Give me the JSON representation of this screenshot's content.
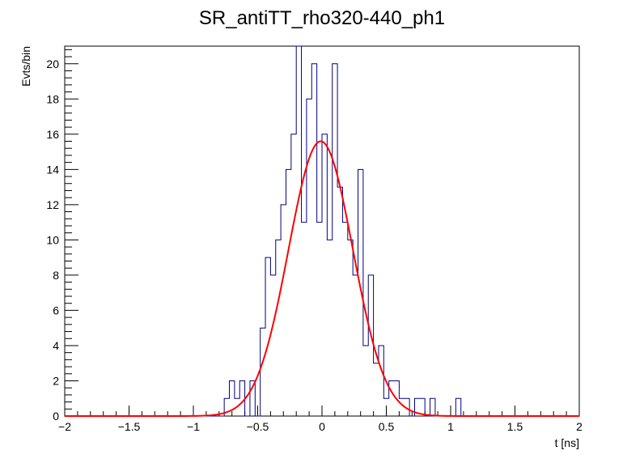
{
  "chart_data": {
    "type": "histogram",
    "title": "SR_antiTT_rho320-440_ph1",
    "xlabel": "t [ns]",
    "ylabel": "Evts/bin",
    "xlim": [
      -2,
      2
    ],
    "ylim": [
      0,
      21
    ],
    "x_ticks": [
      {
        "value": -2,
        "label": "−2"
      },
      {
        "value": -1.5,
        "label": "−1.5"
      },
      {
        "value": -1,
        "label": "−1"
      },
      {
        "value": -0.5,
        "label": "−0.5"
      },
      {
        "value": 0,
        "label": "0"
      },
      {
        "value": 0.5,
        "label": "0.5"
      },
      {
        "value": 1,
        "label": "1"
      },
      {
        "value": 1.5,
        "label": "1.5"
      },
      {
        "value": 2,
        "label": "2"
      }
    ],
    "y_ticks": [
      {
        "value": 0,
        "label": "0"
      },
      {
        "value": 2,
        "label": "2"
      },
      {
        "value": 4,
        "label": "4"
      },
      {
        "value": 6,
        "label": "6"
      },
      {
        "value": 8,
        "label": "8"
      },
      {
        "value": 10,
        "label": "10"
      },
      {
        "value": 12,
        "label": "12"
      },
      {
        "value": 14,
        "label": "14"
      },
      {
        "value": 16,
        "label": "16"
      },
      {
        "value": 18,
        "label": "18"
      },
      {
        "value": 20,
        "label": "20"
      }
    ],
    "histogram": {
      "color": "#000080",
      "bin_edges": [
        -0.76,
        -0.72,
        -0.68,
        -0.64,
        -0.6,
        -0.56,
        -0.52,
        -0.48,
        -0.44,
        -0.4,
        -0.36,
        -0.32,
        -0.28,
        -0.24,
        -0.2,
        -0.16,
        -0.12,
        -0.08,
        -0.04,
        0.0,
        0.04,
        0.08,
        0.12,
        0.16,
        0.2,
        0.24,
        0.28,
        0.32,
        0.36,
        0.4,
        0.44,
        0.48,
        0.52,
        0.56,
        0.6,
        0.64,
        0.68,
        0.72,
        0.76,
        0.8,
        0.84,
        0.88,
        0.92,
        0.96,
        1.0,
        1.04,
        1.08,
        1.12
      ],
      "counts": [
        1,
        2,
        1,
        2,
        0,
        2,
        0,
        5,
        9,
        8,
        10,
        12,
        14,
        16,
        21,
        11,
        18,
        20,
        11,
        16,
        10,
        20,
        13,
        11,
        10,
        8,
        14,
        4,
        8,
        3,
        4,
        1,
        2,
        2,
        1,
        1,
        0,
        1,
        1,
        0,
        1,
        0,
        0,
        0,
        0,
        1,
        0
      ]
    },
    "fit": {
      "type": "gaussian",
      "color": "#ff0000",
      "amplitude": 15.6,
      "mean": -0.01,
      "sigma": 0.25
    },
    "grid": false,
    "legend": "none"
  }
}
